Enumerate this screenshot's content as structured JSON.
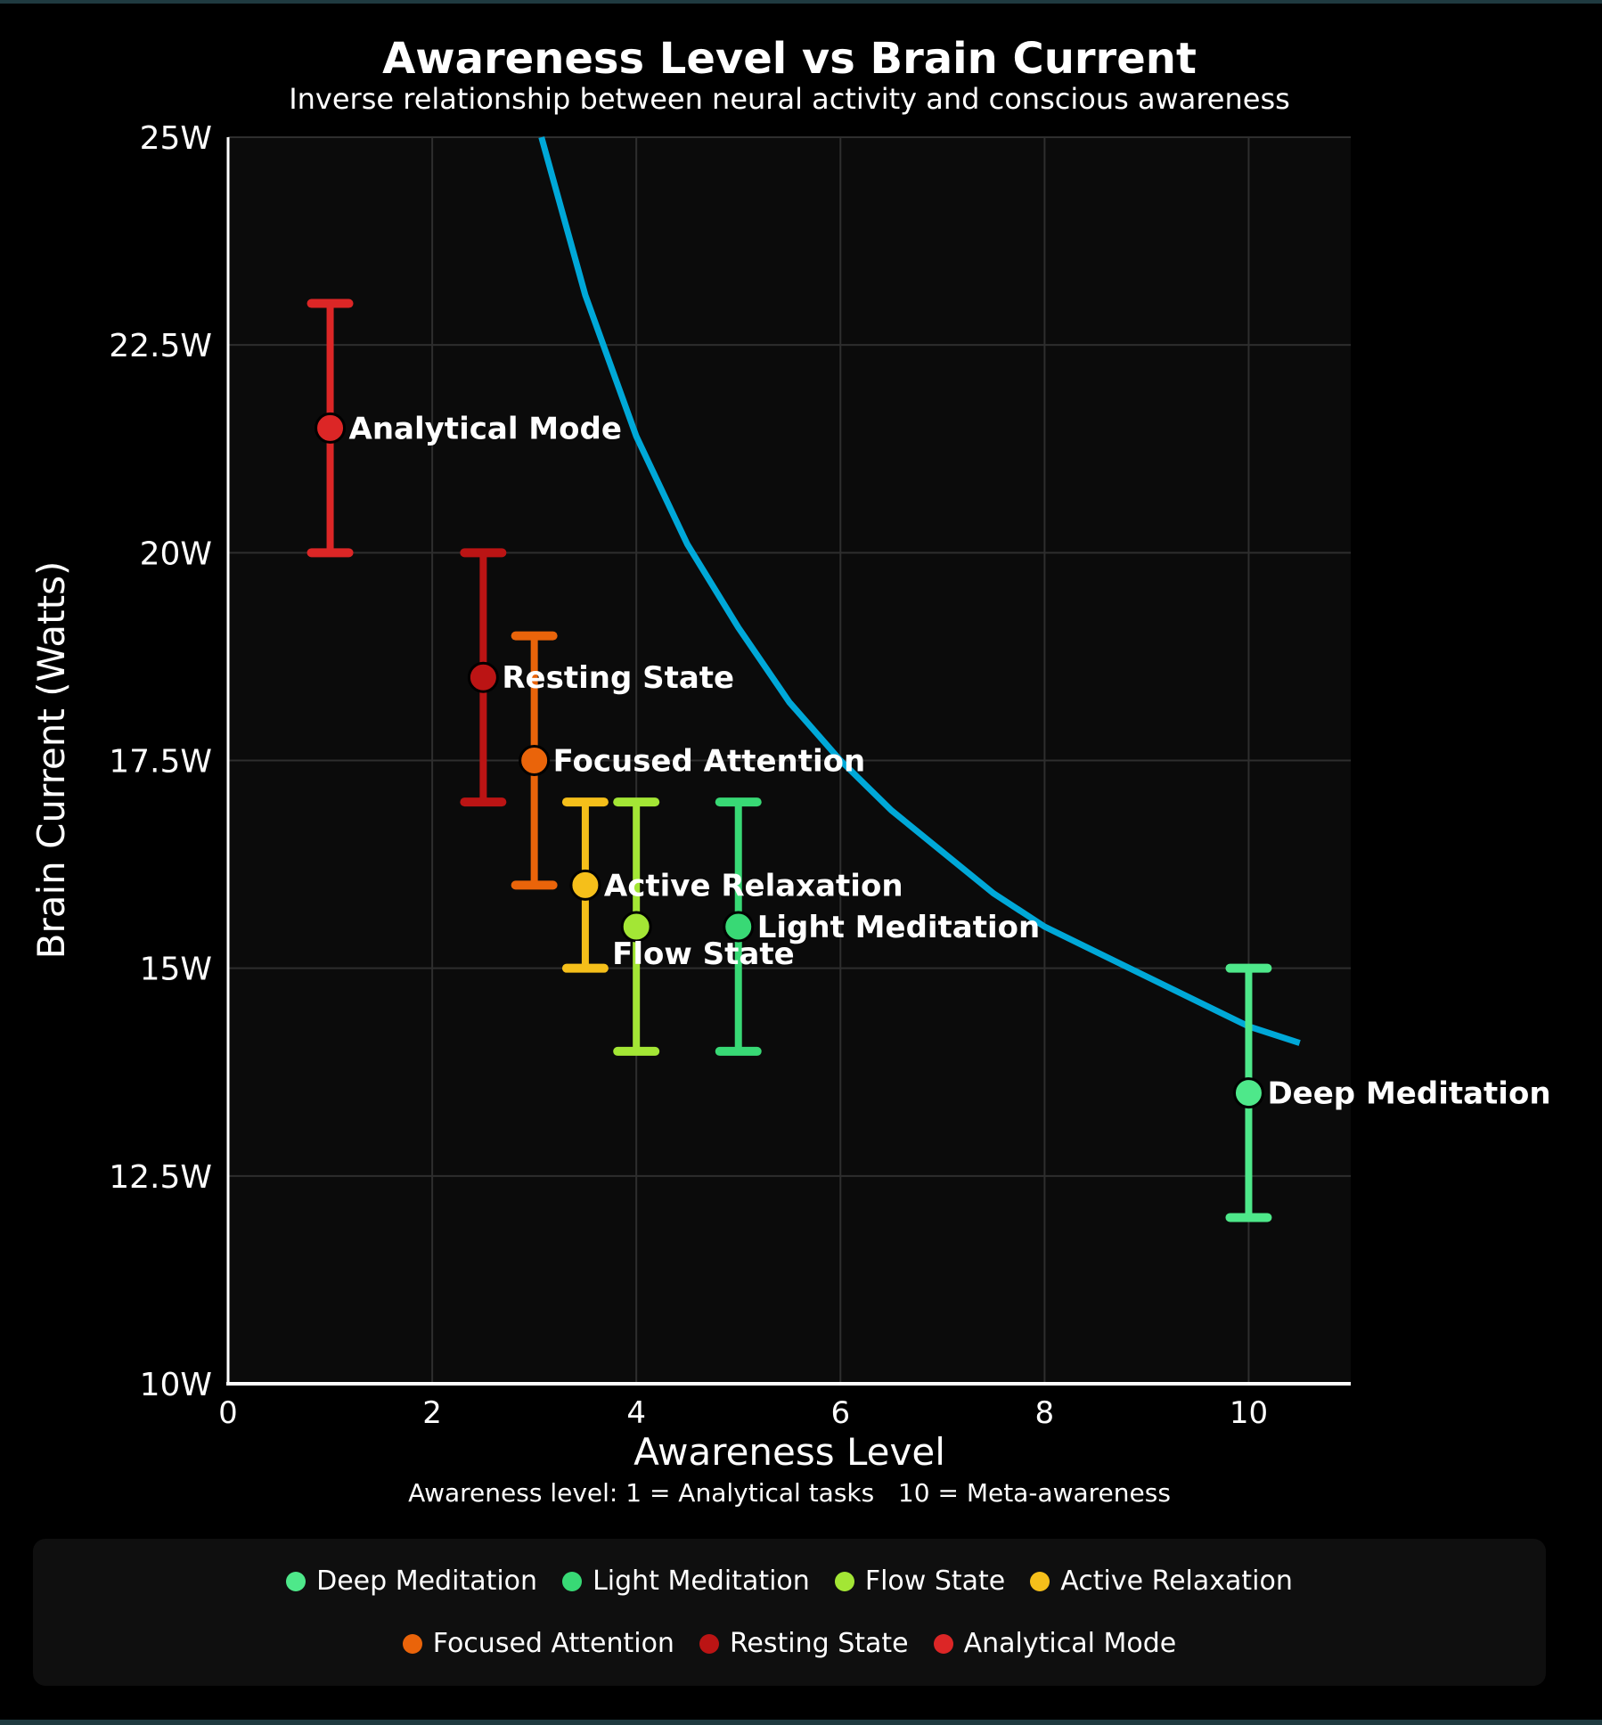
{
  "chart_data": {
    "type": "scatter",
    "title": "Awareness Level vs Brain Current",
    "subtitle": "Inverse relationship between neural activity and conscious awareness",
    "xlabel": "Awareness Level",
    "xnote": "Awareness level: 1 = Analytical tasks   10 = Meta-awareness",
    "ylabel": "Brain Current (Watts)",
    "xlim": [
      0,
      11
    ],
    "ylim": [
      10,
      25
    ],
    "xticks": [
      "0",
      "2",
      "4",
      "6",
      "8",
      "10"
    ],
    "xtick_values": [
      0,
      2,
      4,
      6,
      8,
      10
    ],
    "yticks": [
      "10W",
      "12.5W",
      "15W",
      "17.5W",
      "20W",
      "22.5W",
      "25W"
    ],
    "ytick_values": [
      10,
      12.5,
      15,
      17.5,
      20,
      22.5,
      25
    ],
    "grid": true,
    "legend_position": "bottom",
    "series": [
      {
        "name": "Deep Meditation",
        "x": 10,
        "y": 13.5,
        "low": 12,
        "high": 15,
        "color": "#4ee88a"
      },
      {
        "name": "Light Meditation",
        "x": 5,
        "y": 15.5,
        "low": 14,
        "high": 17,
        "color": "#38d975"
      },
      {
        "name": "Flow State",
        "x": 4,
        "y": 15.5,
        "low": 14,
        "high": 17,
        "color": "#a3e635"
      },
      {
        "name": "Active Relaxation",
        "x": 3.5,
        "y": 16,
        "low": 15,
        "high": 17,
        "color": "#f5bf1a"
      },
      {
        "name": "Focused Attention",
        "x": 3,
        "y": 17.5,
        "low": 16,
        "high": 19,
        "color": "#ea640a"
      },
      {
        "name": "Resting State",
        "x": 2.5,
        "y": 18.5,
        "low": 17,
        "high": 20,
        "color": "#bb1414"
      },
      {
        "name": "Analytical Mode",
        "x": 1,
        "y": 21.5,
        "low": 20,
        "high": 23,
        "color": "#dc2626"
      }
    ],
    "trend_curve": {
      "color": "#00a8d8",
      "points": [
        [
          3.07,
          25
        ],
        [
          3.5,
          23.1
        ],
        [
          4,
          21.4
        ],
        [
          4.5,
          20.1
        ],
        [
          5,
          19.1
        ],
        [
          5.5,
          18.2
        ],
        [
          6,
          17.5
        ],
        [
          6.5,
          16.9
        ],
        [
          7,
          16.4
        ],
        [
          7.5,
          15.9
        ],
        [
          8,
          15.5
        ],
        [
          8.5,
          15.2
        ],
        [
          9,
          14.9
        ],
        [
          9.5,
          14.6
        ],
        [
          10,
          14.3
        ],
        [
          10.5,
          14.1
        ]
      ]
    }
  }
}
